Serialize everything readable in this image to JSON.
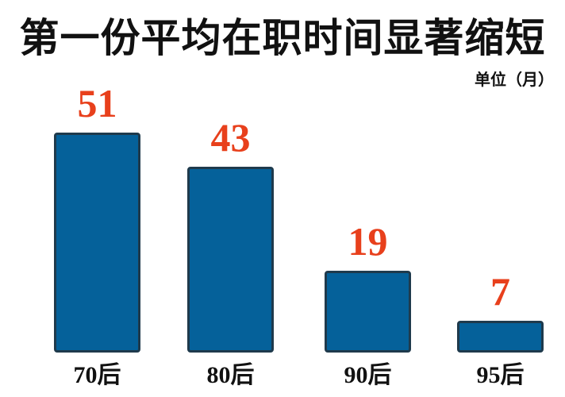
{
  "title": "第一份平均在职时间显著缩短",
  "unit_label": "单位（月）",
  "colors": {
    "bar_fill": "#05619A",
    "bar_border": "#1F3A4C",
    "value_label": "#E8401C",
    "text": "#111111"
  },
  "chart_data": {
    "type": "bar",
    "title": "第一份平均在职时间显著缩短",
    "xlabel": "",
    "ylabel": "单位（月）",
    "categories": [
      "70后",
      "80后",
      "90后",
      "95后"
    ],
    "values": [
      51,
      43,
      19,
      7
    ],
    "data_labels": [
      "51",
      "43",
      "19",
      "7"
    ],
    "grid": false,
    "legend": null
  }
}
